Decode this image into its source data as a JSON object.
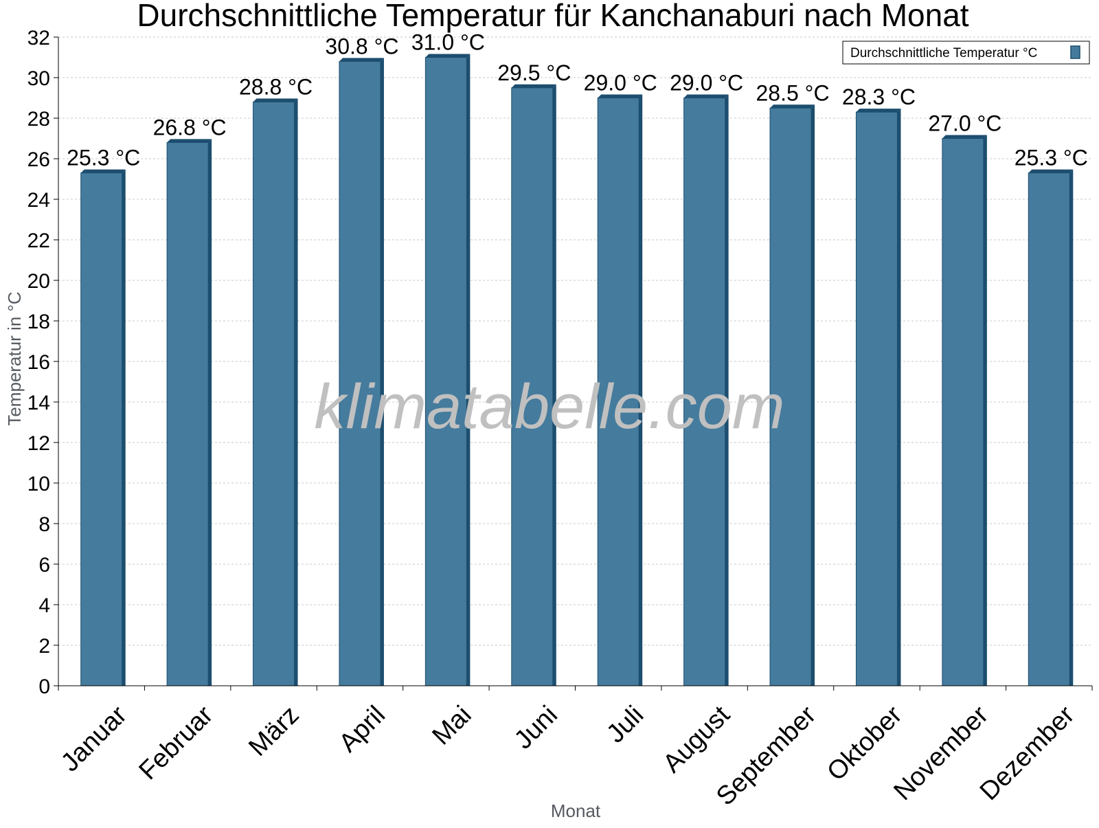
{
  "chart_data": {
    "type": "bar",
    "title": "Durchschnittliche Temperatur für Kanchanaburi nach Monat",
    "xlabel": "Monat",
    "ylabel": "Temperatur in °C",
    "ylim": [
      0,
      32
    ],
    "ytick_step": 2,
    "grid": true,
    "legend_position": "top-right",
    "watermark": "klimatabelle.com",
    "categories": [
      "Januar",
      "Februar",
      "März",
      "April",
      "Mai",
      "Juni",
      "Juli",
      "August",
      "September",
      "Oktober",
      "November",
      "Dezember"
    ],
    "series": [
      {
        "name": "Durchschnittliche Temperatur °C",
        "values": [
          25.3,
          26.8,
          28.8,
          30.8,
          31.0,
          29.5,
          29.0,
          29.0,
          28.5,
          28.3,
          27.0,
          25.3
        ],
        "labels": [
          "25.3 °C",
          "26.8 °C",
          "28.8 °C",
          "30.8 °C",
          "31.0 °C",
          "29.5 °C",
          "29.0 °C",
          "29.0 °C",
          "28.5 °C",
          "28.3 °C",
          "27.0 °C",
          "25.3 °C"
        ],
        "color": "#457b9d",
        "edge_color": "#1d4e6f"
      }
    ]
  }
}
